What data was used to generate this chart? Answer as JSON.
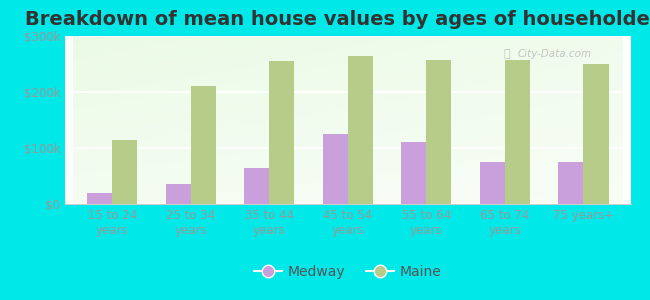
{
  "title": "Breakdown of mean house values by ages of householders",
  "categories": [
    "15 to 24\nyears",
    "25 to 34\nyears",
    "35 to 44\nyears",
    "45 to 54\nyears",
    "55 to 64\nyears",
    "65 to 74\nyears",
    "75 years+"
  ],
  "medway_values": [
    20000,
    35000,
    65000,
    125000,
    110000,
    75000,
    75000
  ],
  "maine_values": [
    115000,
    210000,
    255000,
    265000,
    258000,
    258000,
    250000
  ],
  "medway_color": "#c9a0dc",
  "maine_color": "#b8cc8a",
  "background_color": "#00e8e8",
  "ylim": [
    0,
    300000
  ],
  "yticks": [
    0,
    100000,
    200000,
    300000
  ],
  "ytick_labels": [
    "$0",
    "$100k",
    "$200k",
    "$300k"
  ],
  "legend_labels": [
    "Medway",
    "Maine"
  ],
  "title_fontsize": 14,
  "tick_fontsize": 8.5,
  "legend_fontsize": 10,
  "bar_width": 0.32
}
